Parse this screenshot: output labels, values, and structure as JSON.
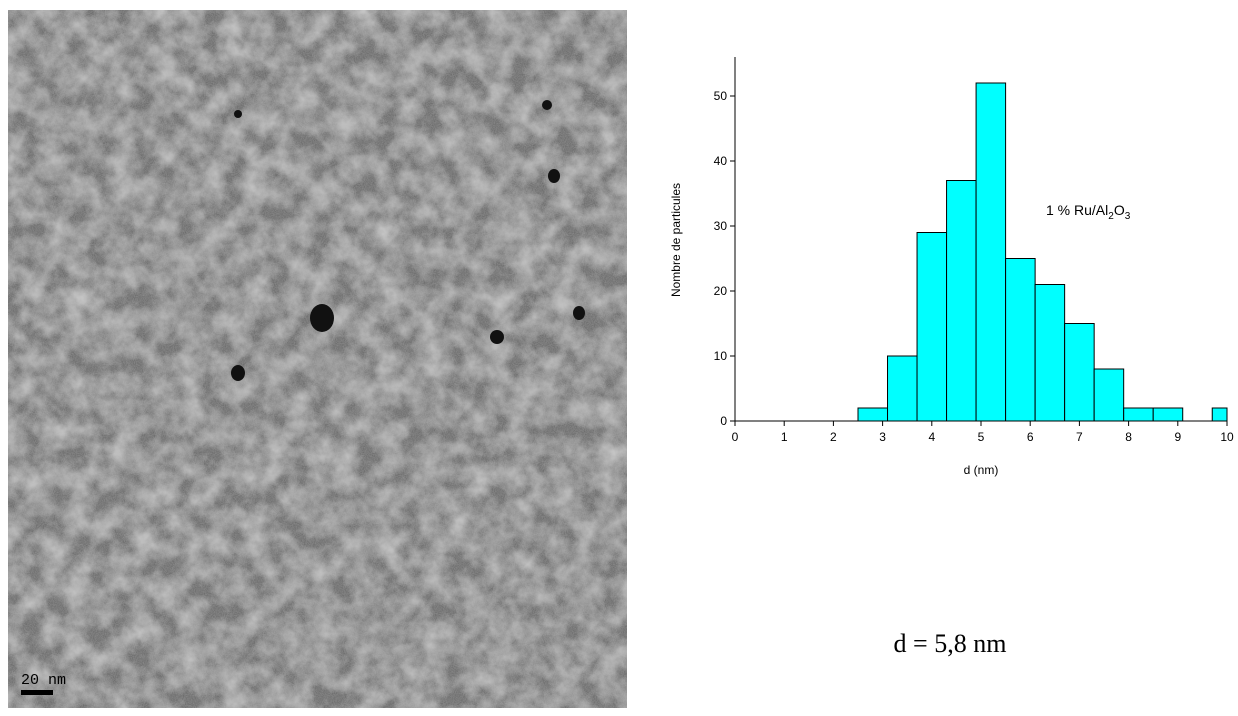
{
  "image": {
    "scale_label": "20 nm"
  },
  "chart_data": {
    "type": "histogram",
    "xlabel": "d (nm)",
    "ylabel": "Nombre de particules",
    "annotation": [
      "1 % Ru/Al",
      "2",
      "O",
      "3"
    ],
    "bins": [
      2.5,
      3.1,
      3.7,
      4.3,
      4.9,
      5.5,
      6.1,
      6.7,
      7.3,
      7.9,
      8.5,
      9.1,
      9.7,
      10
    ],
    "values": [
      2,
      10,
      29,
      37,
      52,
      25,
      21,
      15,
      8,
      2,
      2,
      0,
      2
    ],
    "color": "#00ffff",
    "xlim": [
      0,
      10
    ],
    "xticks": [
      0,
      1,
      2,
      3,
      4,
      5,
      6,
      7,
      8,
      9,
      10
    ],
    "ylim": [
      0,
      56
    ],
    "yticks": [
      0,
      10,
      20,
      30,
      40,
      50
    ]
  },
  "caption": "d = 5,8 nm"
}
